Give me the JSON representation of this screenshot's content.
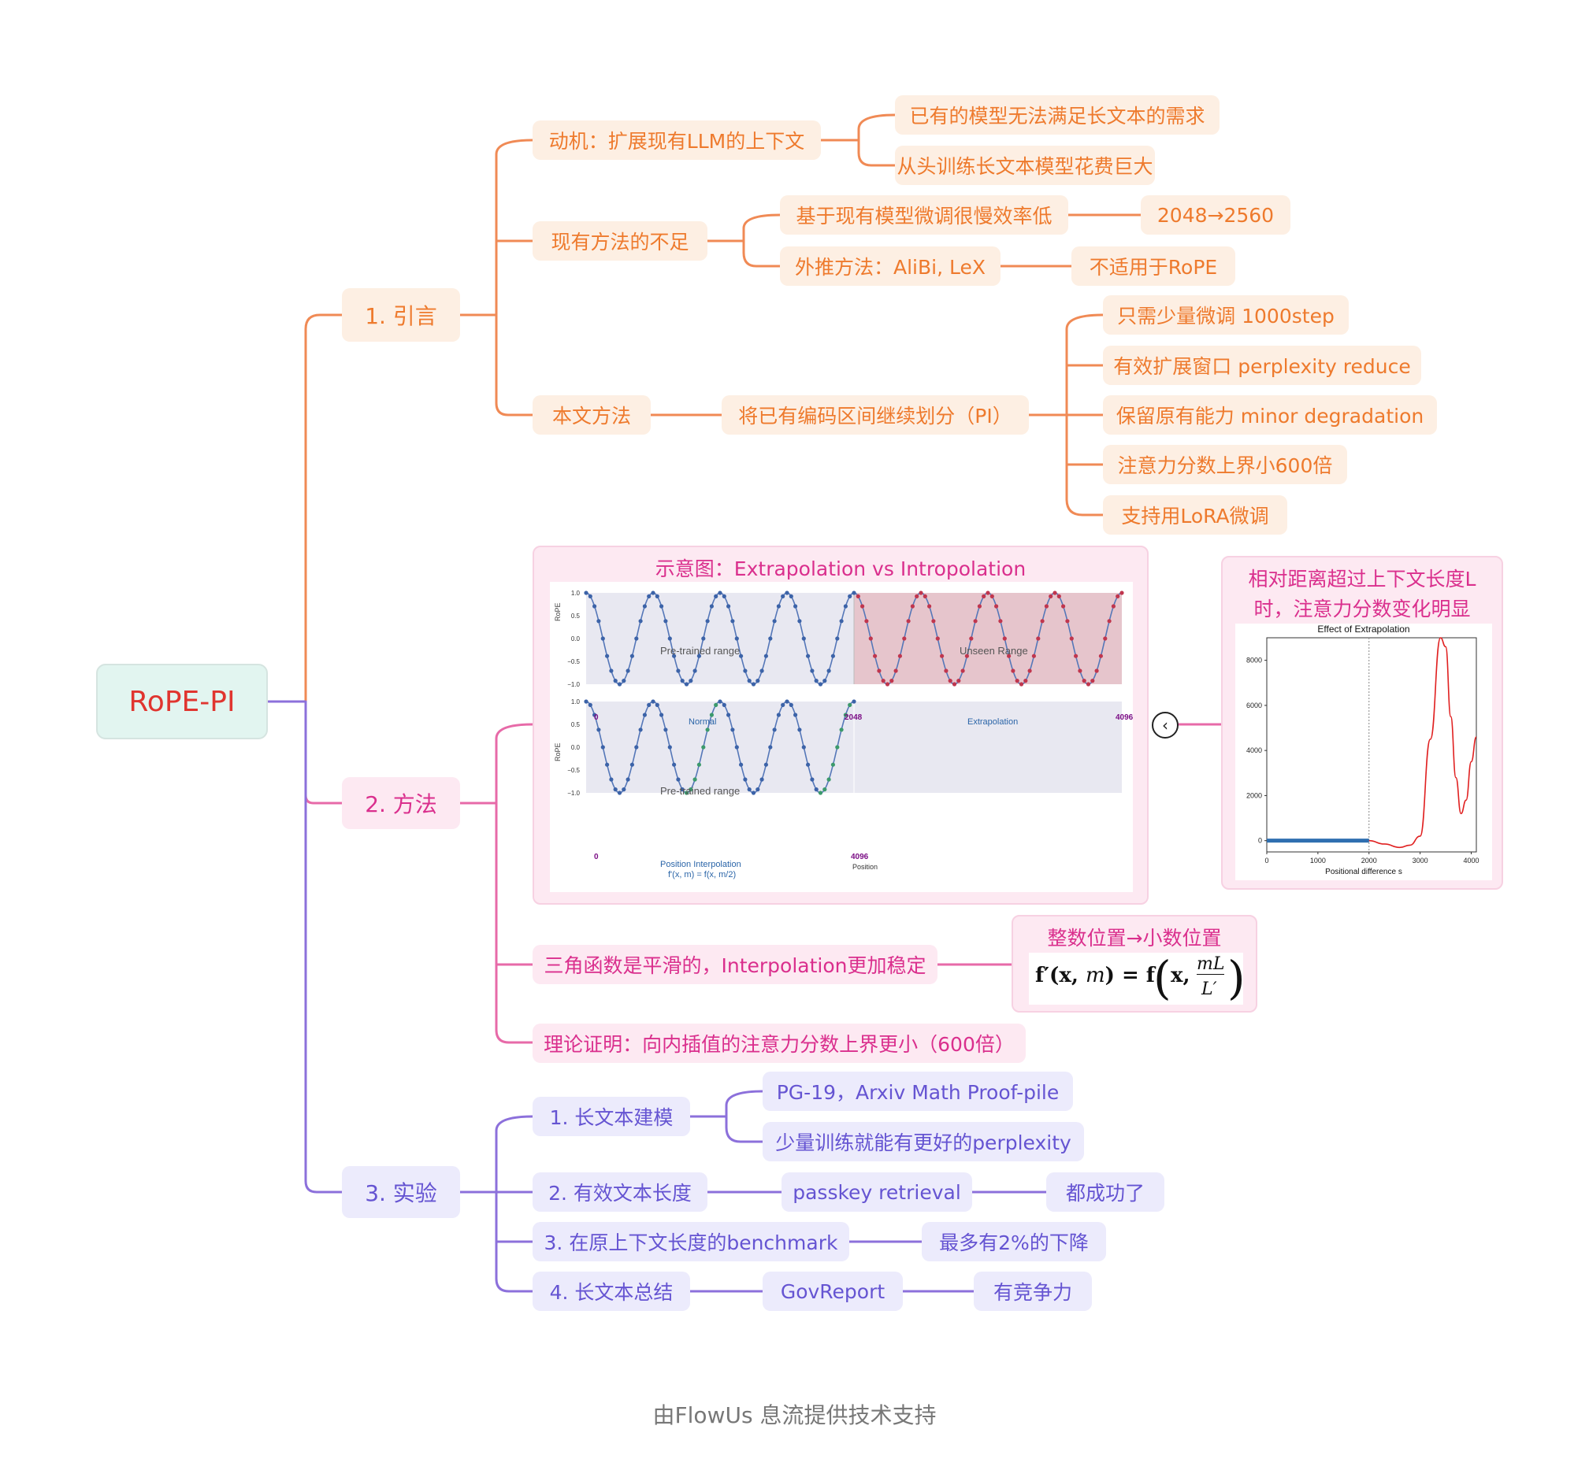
{
  "root": "RoPE-PI",
  "sec1": {
    "label": "1. 引言",
    "motivation": {
      "label": "动机：扩展现有LLM的上下文",
      "items": [
        "已有的模型无法满足长文本的需求",
        "从头训练长文本模型花费巨大"
      ]
    },
    "shortcomings": {
      "label": "现有方法的不足",
      "finetune": {
        "label": "基于现有模型微调很慢效率低",
        "detail": "2048→2560"
      },
      "extrapolate": {
        "label": "外推方法：AliBi, LeX",
        "detail": "不适用于RoPE"
      }
    },
    "method": {
      "label": "本文方法",
      "pi": "将已有编码区间继续划分（PI）",
      "items": [
        "只需少量微调 1000step",
        "有效扩展窗口 perplexity reduce",
        "保留原有能力 minor degradation",
        "注意力分数上界小600倍",
        "支持用LoRA微调"
      ]
    }
  },
  "sec2": {
    "label": "2. 方法",
    "figure": {
      "title": "示意图：Extrapolation vs Intropolation",
      "top": {
        "ylabel": "RoPE",
        "yticks": [
          "1.0",
          "0.5",
          "0.0",
          "−0.5",
          "−1.0"
        ],
        "region1": "Pre-trained range",
        "region2": "Unseen Range",
        "x0": "0",
        "x1": "2048",
        "x2": "4096",
        "cap1": "Normal",
        "cap2": "Extrapolation"
      },
      "bottom": {
        "ylabel": "RoPE",
        "yticks": [
          "1.0",
          "0.5",
          "0.0",
          "−0.5",
          "−1.0"
        ],
        "region1": "Pre-trained range",
        "x0": "0",
        "x1": "4096",
        "cap1": "Position Interpolation",
        "cap2": "f'(x, m) = f(x, m/2)",
        "xname": "Position"
      }
    },
    "side": {
      "title_line1": "相对距离超过上下文长度L",
      "title_line2": "时，注意力分数变化明显",
      "chart_title": "Effect of Extrapolation",
      "yticks": [
        "8000",
        "6000",
        "4000",
        "2000",
        "0"
      ],
      "xticks": [
        "0",
        "1000",
        "2000",
        "3000",
        "4000"
      ],
      "xlabel": "Positional difference s"
    },
    "smooth": "三角函数是平滑的，Interpolation更加稳定",
    "formula_title": "整数位置→小数位置",
    "proof": "理论证明：向内插值的注意力分数上界更小（600倍）"
  },
  "sec3": {
    "label": "3. 实验",
    "e1": {
      "label": "1. 长文本建模",
      "items": [
        "PG-19，Arxiv Math Proof-pile",
        "少量训练就能有更好的perplexity"
      ]
    },
    "e2": {
      "label": "2. 有效文本长度",
      "a": "passkey retrieval",
      "b": "都成功了"
    },
    "e3": {
      "label": "3. 在原上下文长度的benchmark",
      "a": "最多有2%的下降"
    },
    "e4": {
      "label": "4. 长文本总结",
      "a": "GovReport",
      "b": "有竞争力"
    }
  },
  "footer": "由FlowUs 息流提供技术支持",
  "colors": {
    "orange": "#ee7a2d",
    "pink": "#da2f8d",
    "violet": "#6554d2",
    "root": "#e0352f"
  },
  "chart_data": [
    {
      "type": "line",
      "title": "",
      "ylabel": "RoPE",
      "x_ticks": [
        0,
        2048,
        4096
      ],
      "ylim": [
        -1,
        1
      ],
      "series": [
        {
          "name": "",
          "period": 512,
          "x_range": [
            0,
            4096
          ],
          "function": "cos"
        }
      ]
    },
    {
      "type": "line",
      "title": "",
      "ylabel": "RoPE",
      "x_ticks": [
        0,
        4096
      ],
      "ylim": [
        -1,
        1
      ],
      "series": [
        {
          "name": "",
          "period": 512,
          "x_range": [
            0,
            2048
          ],
          "function": "cos"
        }
      ]
    },
    {
      "type": "line",
      "title": "Effect of Extrapolation",
      "xlabel": "Positional difference s",
      "xlim": [
        0,
        4100
      ],
      "ylim": [
        -500,
        9000
      ],
      "x": [
        0,
        2000,
        2300,
        2600,
        2800,
        3000,
        3200,
        3400,
        3500,
        3600,
        3700,
        3800,
        3900,
        4000,
        4100
      ],
      "y": [
        0,
        0,
        -150,
        -300,
        -200,
        200,
        4500,
        9000,
        8600,
        5500,
        2800,
        1200,
        1800,
        3500,
        4600
      ]
    }
  ]
}
